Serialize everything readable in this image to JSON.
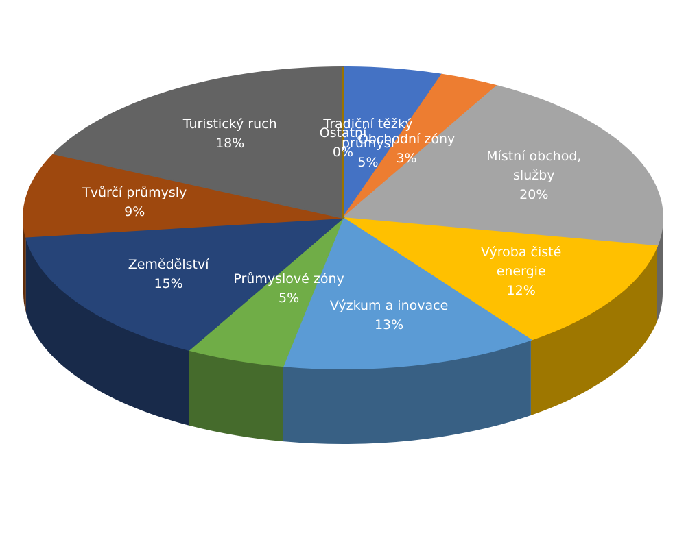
{
  "chart_data": {
    "type": "pie",
    "categories": [
      "Tradiční těžký průmysl",
      "Obchodní zóny",
      "Místní obchod, služby",
      "Výroba čisté energie",
      "Výzkum a inovace",
      "Průmyslové zóny",
      "Zemědělství",
      "Tvůrčí průmysly",
      "Turistický ruch",
      "Ostatní"
    ],
    "values": [
      5,
      3,
      20,
      12,
      13,
      5,
      15,
      9,
      18,
      0
    ],
    "value_labels": [
      "5%",
      "3%",
      "20%",
      "12%",
      "13%",
      "5%",
      "15%",
      "9%",
      "18%",
      "0%"
    ],
    "colors": [
      "#4472c4",
      "#ed7d31",
      "#a5a5a5",
      "#ffc000",
      "#5b9bd5",
      "#70ad47",
      "#264478",
      "#9e480e",
      "#636363",
      "#997300"
    ]
  }
}
